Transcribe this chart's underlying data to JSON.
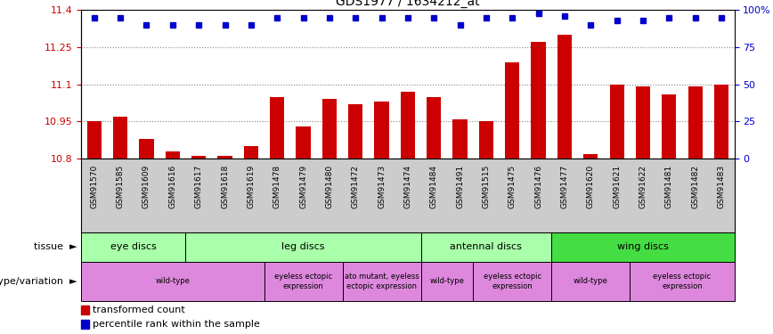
{
  "title": "GDS1977 / 1634212_at",
  "samples": [
    "GSM91570",
    "GSM91585",
    "GSM91609",
    "GSM91616",
    "GSM91617",
    "GSM91618",
    "GSM91619",
    "GSM91478",
    "GSM91479",
    "GSM91480",
    "GSM91472",
    "GSM91473",
    "GSM91474",
    "GSM91484",
    "GSM91491",
    "GSM91515",
    "GSM91475",
    "GSM91476",
    "GSM91477",
    "GSM91620",
    "GSM91621",
    "GSM91622",
    "GSM91481",
    "GSM91482",
    "GSM91483"
  ],
  "bar_values": [
    10.95,
    10.97,
    10.88,
    10.83,
    10.81,
    10.81,
    10.85,
    11.05,
    10.93,
    11.04,
    11.02,
    11.03,
    11.07,
    11.05,
    10.96,
    10.95,
    11.19,
    11.27,
    11.3,
    10.82,
    11.1,
    11.09,
    11.06,
    11.09,
    11.1
  ],
  "percentile_values": [
    95,
    95,
    90,
    90,
    90,
    90,
    90,
    95,
    95,
    95,
    95,
    95,
    95,
    95,
    90,
    95,
    95,
    98,
    96,
    90,
    93,
    93,
    95,
    95,
    95
  ],
  "ymin": 10.8,
  "ymax": 11.4,
  "y_ticks": [
    10.8,
    10.95,
    11.1,
    11.25,
    11.4
  ],
  "right_y_ticks": [
    0,
    25,
    50,
    75,
    100
  ],
  "right_y_labels": [
    "0",
    "25",
    "50",
    "75",
    "100%"
  ],
  "bar_color": "#cc0000",
  "dot_color": "#0000cc",
  "tissue_row": [
    {
      "label": "eye discs",
      "start": 0,
      "end": 4
    },
    {
      "label": "leg discs",
      "start": 4,
      "end": 13
    },
    {
      "label": "antennal discs",
      "start": 13,
      "end": 18
    },
    {
      "label": "wing discs",
      "start": 18,
      "end": 25
    }
  ],
  "tissue_colors": {
    "eye discs": "#aaffaa",
    "leg discs": "#aaffaa",
    "antennal discs": "#aaffaa",
    "wing discs": "#44dd44"
  },
  "genotype_row": [
    {
      "label": "wild-type",
      "start": 0,
      "end": 7
    },
    {
      "label": "eyeless ectopic\nexpression",
      "start": 7,
      "end": 10
    },
    {
      "label": "ato mutant, eyeless\nectopic expression",
      "start": 10,
      "end": 13
    },
    {
      "label": "wild-type",
      "start": 13,
      "end": 15
    },
    {
      "label": "eyeless ectopic\nexpression",
      "start": 15,
      "end": 18
    },
    {
      "label": "wild-type",
      "start": 18,
      "end": 21
    },
    {
      "label": "eyeless ectopic\nexpression",
      "start": 21,
      "end": 25
    }
  ],
  "genotype_color": "#dd88dd",
  "dotted_line_color": "#888888",
  "bar_color_left_axis": "#cc0000",
  "right_axis_color": "#0000cc",
  "sample_bg_color": "#cccccc"
}
